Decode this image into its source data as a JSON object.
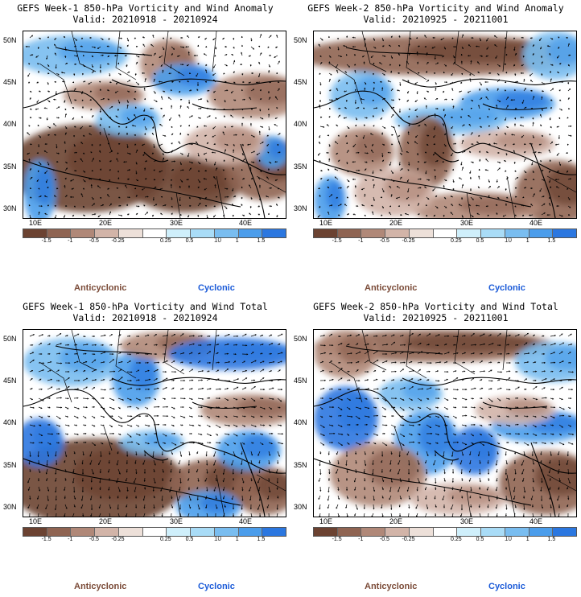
{
  "panels": [
    {
      "title_line1": "GEFS Week-1 850-hPa Vorticity and Wind Anomaly",
      "title_line2": "Valid: 20210918 - 20210924"
    },
    {
      "title_line1": "GEFS Week-2 850-hPa Vorticity and Wind Anomaly",
      "title_line2": "Valid: 20210925 - 20211001"
    },
    {
      "title_line1": "GEFS Week-1 850-hPa Vorticity and Wind Total",
      "title_line2": "Valid: 20210918 - 20210924"
    },
    {
      "title_line1": "GEFS Week-2 850-hPa Vorticity and Wind Total",
      "title_line2": "Valid: 20210925 - 20211001"
    }
  ],
  "lat_labels": [
    "50N",
    "45N",
    "40N",
    "35N",
    "30N"
  ],
  "lon_labels": [
    "10E",
    "20E",
    "30E",
    "40E"
  ],
  "colorbar": {
    "labels": [
      "-1.5",
      "-1",
      "-0.5",
      "-0.25",
      "0.25",
      "0.5",
      "1",
      "1.5"
    ],
    "unit": "10",
    "colors": [
      "#6b4231",
      "#8f6452",
      "#b08878",
      "#d2b4a8",
      "#ede0d9",
      "#ffffff",
      "#cfeffb",
      "#a9dcf7",
      "#79bdf0",
      "#4b9deb",
      "#2b77e0"
    ]
  },
  "legend": {
    "anticyclonic": "Anticyclonic",
    "cyclonic": "Cyclonic"
  }
}
